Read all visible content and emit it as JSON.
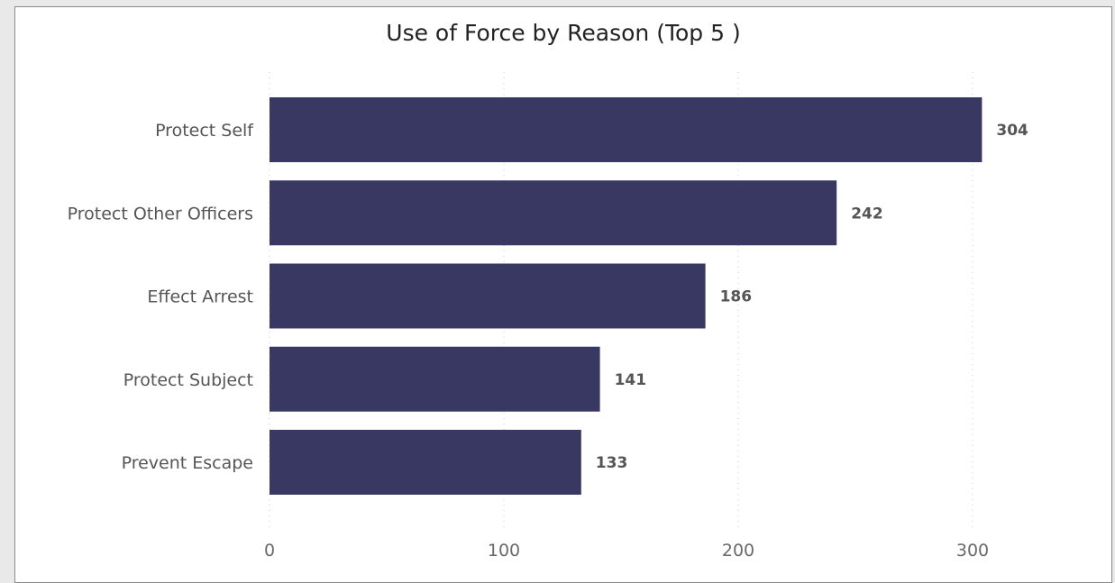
{
  "chart_data": {
    "type": "bar",
    "orientation": "horizontal",
    "title": "Use of Force by Reason (Top 5 )",
    "categories": [
      "Protect Self",
      "Protect Other Officers",
      "Effect Arrest",
      "Protect Subject",
      "Prevent Escape"
    ],
    "values": [
      304,
      242,
      186,
      141,
      133
    ],
    "xlabel": "",
    "ylabel": "",
    "xlim": [
      0,
      300
    ],
    "xticks": [
      0,
      100,
      200,
      300
    ],
    "grid": "vertical dotted",
    "data_labels": true,
    "bar_color": "#383862"
  }
}
